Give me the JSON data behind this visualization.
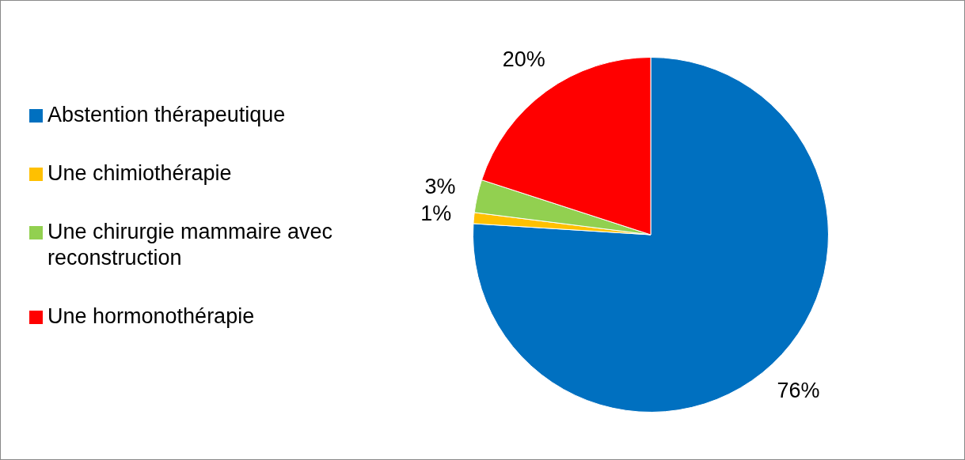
{
  "chart_data": {
    "type": "pie",
    "categories": [
      "Abstention thérapeutique",
      "Une chimiothérapie",
      "Une chirurgie mammaire avec reconstruction",
      "Une hormonothérapie"
    ],
    "values": [
      76,
      1,
      3,
      20
    ],
    "colors": [
      "#0070c0",
      "#ffc000",
      "#92d050",
      "#ff0000"
    ],
    "value_labels": [
      "76%",
      "1%",
      "3%",
      "20%"
    ],
    "legend": "left"
  }
}
